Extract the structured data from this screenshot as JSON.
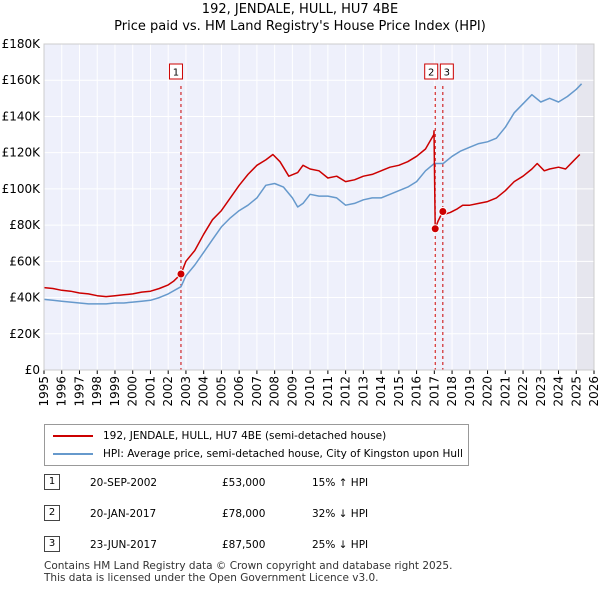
{
  "chart_data": {
    "type": "line",
    "title": "192, JENDALE, HULL, HU7 4BE",
    "subtitle": "Price paid vs. HM Land Registry's House Price Index (HPI)",
    "ylim": [
      0,
      180000
    ],
    "xlim": [
      1995,
      2026
    ],
    "y_ticks": [
      0,
      20000,
      40000,
      60000,
      80000,
      100000,
      120000,
      140000,
      160000,
      180000
    ],
    "y_tick_labels": [
      "£0",
      "£20K",
      "£40K",
      "£60K",
      "£80K",
      "£100K",
      "£120K",
      "£140K",
      "£160K",
      "£180K"
    ],
    "x_ticks": [
      1995,
      1996,
      1997,
      1998,
      1999,
      2000,
      2001,
      2002,
      2003,
      2004,
      2005,
      2006,
      2007,
      2008,
      2009,
      2010,
      2011,
      2012,
      2013,
      2014,
      2015,
      2016,
      2017,
      2018,
      2019,
      2020,
      2021,
      2022,
      2023,
      2024,
      2025,
      2026
    ],
    "x_tick_labels": [
      "1995",
      "1996",
      "1997",
      "1998",
      "1999",
      "2000",
      "2001",
      "2002",
      "2003",
      "2004",
      "2005",
      "2006",
      "2007",
      "2008",
      "2009",
      "2010",
      "2011",
      "2012",
      "2013",
      "2014",
      "2015",
      "2016",
      "2017",
      "2018",
      "2019",
      "2020",
      "2021",
      "2022",
      "2023",
      "2024",
      "2025",
      "2026"
    ],
    "series": [
      {
        "name": "192, JENDALE, HULL, HU7 4BE (semi-detached house)",
        "color": "#cc0000",
        "x": [
          1995.0,
          1995.5,
          1996.0,
          1996.5,
          1997.0,
          1997.5,
          1998.0,
          1998.5,
          1999.0,
          1999.5,
          2000.0,
          2000.5,
          2001.0,
          2001.5,
          2002.0,
          2002.3,
          2002.72,
          2003.0,
          2003.5,
          2004.0,
          2004.5,
          2005.0,
          2005.5,
          2006.0,
          2006.5,
          2007.0,
          2007.5,
          2007.9,
          2008.3,
          2008.8,
          2009.3,
          2009.6,
          2010.0,
          2010.5,
          2011.0,
          2011.5,
          2012.0,
          2012.5,
          2013.0,
          2013.5,
          2014.0,
          2014.5,
          2015.0,
          2015.5,
          2016.0,
          2016.5,
          2016.97,
          2016.98,
          2017.05,
          2017.2,
          2017.48,
          2017.6,
          2017.9,
          2018.3,
          2018.6,
          2019.0,
          2019.5,
          2020.0,
          2020.5,
          2021.0,
          2021.5,
          2022.0,
          2022.5,
          2022.8,
          2023.2,
          2023.5,
          2024.0,
          2024.4,
          2024.8,
          2025.2
        ],
        "values": [
          45500,
          45000,
          44000,
          43500,
          42500,
          42000,
          41000,
          40500,
          41000,
          41500,
          42000,
          43000,
          43500,
          45000,
          47000,
          49000,
          53000,
          60000,
          66000,
          75000,
          83000,
          88000,
          95000,
          102000,
          108000,
          113000,
          116000,
          119000,
          115000,
          107000,
          109000,
          113000,
          111000,
          110000,
          106000,
          107000,
          104000,
          105000,
          107000,
          108000,
          110000,
          112000,
          113000,
          115000,
          118000,
          122000,
          130000,
          132000,
          78000,
          82000,
          87500,
          86000,
          87000,
          89000,
          91000,
          91000,
          92000,
          93000,
          95000,
          99000,
          104000,
          107000,
          111000,
          114000,
          110000,
          111000,
          112000,
          111000,
          115000,
          119000
        ]
      },
      {
        "name": "HPI: Average price, semi-detached house, City of Kingston upon Hull",
        "color": "#6699cc",
        "x": [
          1995.0,
          1995.5,
          1996.0,
          1996.5,
          1997.0,
          1997.5,
          1998.0,
          1998.5,
          1999.0,
          1999.5,
          2000.0,
          2000.5,
          2001.0,
          2001.5,
          2002.0,
          2002.72,
          2003.0,
          2003.5,
          2004.0,
          2004.5,
          2005.0,
          2005.5,
          2006.0,
          2006.5,
          2007.0,
          2007.5,
          2008.0,
          2008.5,
          2009.0,
          2009.3,
          2009.6,
          2010.0,
          2010.5,
          2011.0,
          2011.5,
          2012.0,
          2012.5,
          2013.0,
          2013.5,
          2014.0,
          2014.5,
          2015.0,
          2015.5,
          2016.0,
          2016.5,
          2017.0,
          2017.5,
          2018.0,
          2018.5,
          2019.0,
          2019.5,
          2020.0,
          2020.5,
          2021.0,
          2021.5,
          2022.0,
          2022.5,
          2023.0,
          2023.5,
          2024.0,
          2024.5,
          2025.0,
          2025.3
        ],
        "values": [
          39000,
          38500,
          38000,
          37500,
          37000,
          36500,
          36500,
          36500,
          37000,
          37000,
          37500,
          38000,
          38500,
          40000,
          42000,
          46000,
          52000,
          58000,
          65000,
          72000,
          79000,
          84000,
          88000,
          91000,
          95000,
          102000,
          103000,
          101000,
          95000,
          90000,
          92000,
          97000,
          96000,
          96000,
          95000,
          91000,
          92000,
          94000,
          95000,
          95000,
          97000,
          99000,
          101000,
          104000,
          110000,
          114000,
          114000,
          118000,
          121000,
          123000,
          125000,
          126000,
          128000,
          134000,
          142000,
          147000,
          152000,
          148000,
          150000,
          148000,
          151000,
          155000,
          158000
        ]
      }
    ],
    "sales": [
      {
        "label": "1",
        "date": "20-SEP-2002",
        "x": 2002.72,
        "price_value": 53000,
        "price": "£53,000",
        "hpi": "15% ↑ HPI"
      },
      {
        "label": "2",
        "date": "20-JAN-2017",
        "x": 2017.05,
        "price_value": 78000,
        "price": "£78,000",
        "hpi": "32% ↓ HPI"
      },
      {
        "label": "3",
        "date": "23-JUN-2017",
        "x": 2017.48,
        "price_value": 87500,
        "price": "£87,500",
        "hpi": "25% ↓ HPI"
      }
    ],
    "marker_labels": [
      {
        "label": "1",
        "x": 2002.72
      },
      {
        "label": "2",
        "x": 2017.05
      },
      {
        "label": "3",
        "x": 2017.48
      }
    ],
    "future_shade_from": 2025.0
  },
  "legend": {
    "red_label": "192, JENDALE, HULL, HU7 4BE (semi-detached house)",
    "blue_label": "HPI: Average price, semi-detached house, City of Kingston upon Hull",
    "red_color": "#cc0000",
    "blue_color": "#6699cc"
  },
  "footer": {
    "line1": "Contains HM Land Registry data © Crown copyright and database right 2025.",
    "line2": "This data is licensed under the Open Government Licence v3.0."
  }
}
